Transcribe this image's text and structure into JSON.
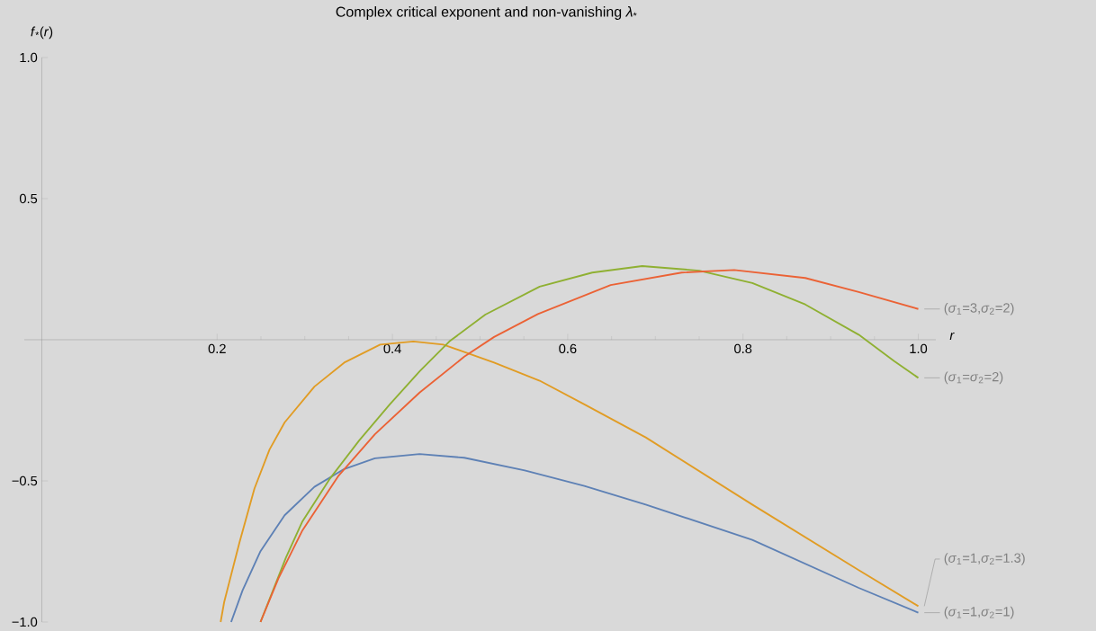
{
  "chart_data": {
    "type": "line",
    "title": "Complex critical exponent and non-vanishing *λ*$_{*}$",
    "xlabel": "*r*",
    "ylabel": "*f*$_{*}$(*r*)",
    "xlim": [
      -0.02,
      1.02
    ],
    "ylim": [
      -1.0,
      1.0
    ],
    "xticks": [
      0.2,
      0.4,
      0.6,
      0.8,
      {
        "value": 1.0,
        "label": "1.0"
      }
    ],
    "yticks": [
      {
        "value": -1.0,
        "label": "−1.0"
      },
      {
        "value": -0.5,
        "label": "−0.5"
      },
      0.5,
      {
        "value": 1.0,
        "label": "1.0"
      }
    ],
    "series": [
      {
        "name": "(*σ*$_{1}$=1,*σ*$_{2}$=1)",
        "color": "#5e81b5",
        "x": [
          0.216,
          0.229,
          0.2495,
          0.277,
          0.311,
          0.345,
          0.38,
          0.431,
          0.482,
          0.551,
          0.619,
          0.689,
          0.8106,
          0.932,
          1.0
        ],
        "values": [
          -1.0,
          -0.888,
          -0.749,
          -0.622,
          -0.521,
          -0.458,
          -0.42,
          -0.405,
          -0.418,
          -0.463,
          -0.518,
          -0.584,
          -0.709,
          -0.879,
          -0.967
        ]
      },
      {
        "name": "(*σ*$_{1}$=1,*σ*$_{2}$=1.3)",
        "color": "#e19c24",
        "x": [
          0.204,
          0.208,
          0.2255,
          0.2426,
          0.2598,
          0.277,
          0.311,
          0.345,
          0.386,
          0.424,
          0.458,
          0.516,
          0.568,
          0.619,
          0.689,
          0.8106,
          0.932,
          1.0
        ],
        "values": [
          -1.0,
          -0.93,
          -0.718,
          -0.527,
          -0.389,
          -0.293,
          -0.166,
          -0.081,
          -0.017,
          -0.006,
          -0.017,
          -0.081,
          -0.145,
          -0.229,
          -0.346,
          -0.584,
          -0.816,
          -0.944
        ]
      },
      {
        "name": "(*σ*$_{1}$=*σ*$_{2}$=2)",
        "color": "#8fb032",
        "x": [
          0.2495,
          0.2786,
          0.2974,
          0.328,
          0.362,
          0.397,
          0.431,
          0.465,
          0.506,
          0.568,
          0.628,
          0.685,
          0.75,
          0.8106,
          0.871,
          0.932,
          0.9725,
          1.0
        ],
        "values": [
          -1.0,
          -0.771,
          -0.643,
          -0.495,
          -0.357,
          -0.229,
          -0.112,
          -0.006,
          0.089,
          0.188,
          0.238,
          0.261,
          0.245,
          0.201,
          0.125,
          0.018,
          -0.076,
          -0.135
        ]
      },
      {
        "name": "(*σ*$_{1}$=3,*σ*$_{2}$=2)",
        "color": "#eb6235",
        "x": [
          0.2495,
          0.27,
          0.2974,
          0.338,
          0.38,
          0.431,
          0.482,
          0.516,
          0.566,
          0.649,
          0.73,
          0.79,
          0.871,
          0.932,
          1.0
        ],
        "values": [
          -1.0,
          -0.845,
          -0.675,
          -0.484,
          -0.335,
          -0.187,
          -0.06,
          0.01,
          0.091,
          0.194,
          0.238,
          0.247,
          0.219,
          0.169,
          0.109
        ]
      }
    ]
  }
}
